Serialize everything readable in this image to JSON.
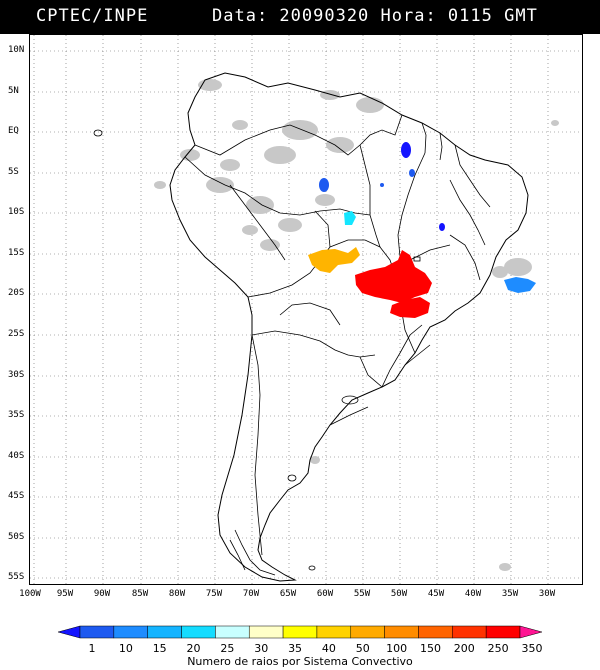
{
  "header": {
    "agency": "CPTEC/INPE",
    "datetime": "Data: 20090320 Hora: 0115 GMT"
  },
  "axes": {
    "lat_labels": [
      "10N",
      "5N",
      "EQ",
      "5S",
      "10S",
      "15S",
      "20S",
      "25S",
      "30S",
      "35S",
      "40S",
      "45S",
      "50S",
      "55S"
    ],
    "lon_labels": [
      "100W",
      "95W",
      "90W",
      "85W",
      "80W",
      "75W",
      "70W",
      "65W",
      "60W",
      "55W",
      "50W",
      "45W",
      "40W",
      "35W",
      "30W"
    ]
  },
  "legend": {
    "caption": "Numero de raios por Sistema Convectivo",
    "ticks": [
      "1",
      "10",
      "15",
      "20",
      "25",
      "30",
      "35",
      "40",
      "50",
      "100",
      "150",
      "200",
      "250",
      "350"
    ],
    "colors": [
      "#1414ff",
      "#1e5af0",
      "#1e8cff",
      "#14b4ff",
      "#14dcff",
      "#c8ffff",
      "#ffffc8",
      "#ffff00",
      "#ffd200",
      "#ffaa00",
      "#ff8c00",
      "#ff6400",
      "#ff3200",
      "#ff0000",
      "#ff1493"
    ]
  },
  "systems": [
    {
      "name": "storm-red-central",
      "count_class": "350",
      "color": "#ff0000"
    },
    {
      "name": "storm-orange-west",
      "count_class": "50",
      "color": "#ffb400"
    },
    {
      "name": "storm-blue-atlantic",
      "count_class": "10",
      "color": "#1e8cff"
    },
    {
      "name": "storm-cyan-central",
      "count_class": "25",
      "color": "#14e6ff"
    },
    {
      "name": "storm-blue-north",
      "count_class": "1",
      "color": "#1414ff"
    }
  ]
}
